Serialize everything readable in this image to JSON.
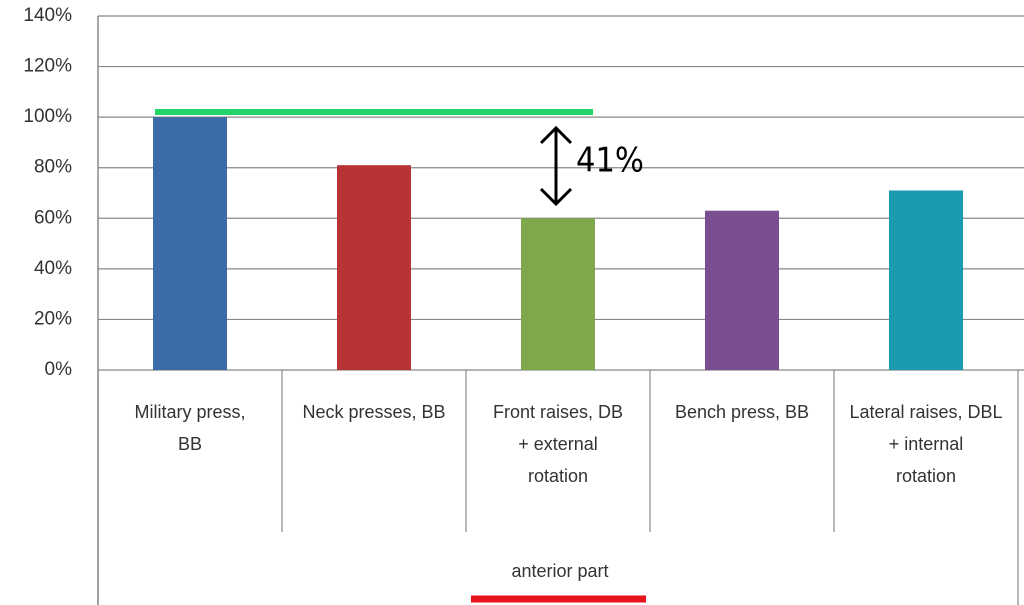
{
  "chart_data": {
    "type": "bar",
    "categories": [
      "Military press,\nBB",
      "Neck presses, BB",
      "Front raises, DB\n+ external\nrotation",
      "Bench press, BB",
      "Lateral raises, DBL\n+ internal\nrotation"
    ],
    "values": [
      100,
      81,
      60,
      63,
      71
    ],
    "colors": [
      "#3c6ca8",
      "#b83333",
      "#7ea84a",
      "#7a4f92",
      "#1a9bb0"
    ],
    "ylim": [
      0,
      140
    ],
    "yticks": [
      {
        "value": 0,
        "label": "0%"
      },
      {
        "value": 20,
        "label": "20%"
      },
      {
        "value": 40,
        "label": "40%"
      },
      {
        "value": 60,
        "label": "60%"
      },
      {
        "value": 80,
        "label": "80%"
      },
      {
        "value": 100,
        "label": "100%"
      },
      {
        "value": 120,
        "label": "120%"
      },
      {
        "value": 140,
        "label": "140%"
      }
    ],
    "grid": true,
    "group_label": "anterior part",
    "annotations": [
      "41%"
    ]
  }
}
